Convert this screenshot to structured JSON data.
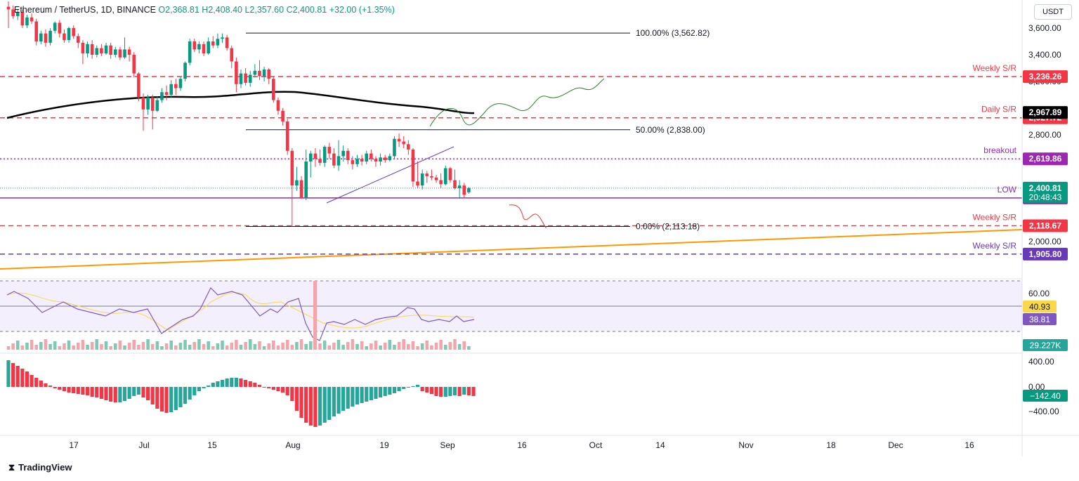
{
  "header": {
    "symbol": "Ethereum / TetherUS, 1D, BINANCE",
    "open": "O2,368.81",
    "high": "H2,408.40",
    "low": "L2,357.60",
    "close": "C2,400.81",
    "change": "+32.00 (+1.35%)"
  },
  "currency": "USDT",
  "brand": "TradingView",
  "chart_data": {
    "type": "candlestick",
    "y_axis_ticks": [
      3600,
      3400,
      3200,
      2800,
      2000
    ],
    "y_tick_labels": [
      "3,600.00",
      "3,400.00",
      "3,200.00",
      "2,800.00",
      "2,000.00"
    ],
    "x_tick_labels": [
      "17",
      "Jul",
      "15",
      "Aug",
      "19",
      "Sep",
      "16",
      "Oct",
      "14",
      "Nov",
      "18",
      "Dec",
      "16"
    ],
    "fibonacci": [
      {
        "label": "100.00% (3,562.82)",
        "value": 3562.82
      },
      {
        "label": "50.00% (2,838.00)",
        "value": 2838.0
      },
      {
        "label": "0.00% (2,113.18)",
        "value": 2113.18
      }
    ],
    "levels": [
      {
        "label": "Weekly S/R",
        "value": 3236.26,
        "tag": "3,236.26",
        "color": "#f23645"
      },
      {
        "label": "Daily S/R",
        "value": 2927.72,
        "tag": "2,927.72",
        "color": "#f23645"
      },
      {
        "label": "breakout",
        "value": 2619.86,
        "tag": "2,619.86",
        "color": "#9c27b0"
      },
      {
        "label": "LOW",
        "value": 2327.16,
        "tag": "2,327.16",
        "color": "#9c27b0"
      },
      {
        "label": "Weekly S/R",
        "value": 2118.67,
        "tag": "2,118.67",
        "color": "#f23645"
      },
      {
        "label": "Weekly S/R",
        "value": 1905.8,
        "tag": "1,905.80",
        "color": "#673ab7"
      }
    ],
    "ma200_tag": "2,967.89",
    "last_price": "2,400.81",
    "countdown": "20:48:43",
    "candles": [
      [
        3760,
        3740,
        3800,
        3600
      ],
      [
        3740,
        3690,
        3770,
        3670
      ],
      [
        3690,
        3720,
        3740,
        3660
      ],
      [
        3720,
        3620,
        3740,
        3600
      ],
      [
        3620,
        3680,
        3700,
        3600
      ],
      [
        3680,
        3650,
        3710,
        3630
      ],
      [
        3650,
        3500,
        3670,
        3470
      ],
      [
        3500,
        3560,
        3580,
        3480
      ],
      [
        3560,
        3490,
        3590,
        3460
      ],
      [
        3490,
        3580,
        3600,
        3470
      ],
      [
        3580,
        3640,
        3650,
        3560
      ],
      [
        3640,
        3560,
        3660,
        3530
      ],
      [
        3560,
        3510,
        3590,
        3490
      ],
      [
        3510,
        3600,
        3610,
        3490
      ],
      [
        3600,
        3540,
        3620,
        3520
      ],
      [
        3540,
        3490,
        3560,
        3450
      ],
      [
        3490,
        3410,
        3510,
        3330
      ],
      [
        3410,
        3480,
        3500,
        3380
      ],
      [
        3480,
        3400,
        3510,
        3370
      ],
      [
        3400,
        3450,
        3470,
        3380
      ],
      [
        3450,
        3410,
        3480,
        3390
      ],
      [
        3410,
        3470,
        3490,
        3400
      ],
      [
        3470,
        3400,
        3490,
        3370
      ],
      [
        3400,
        3440,
        3460,
        3380
      ],
      [
        3440,
        3380,
        3460,
        3360
      ],
      [
        3380,
        3440,
        3530,
        3370
      ],
      [
        3440,
        3400,
        3460,
        3350
      ],
      [
        3400,
        3260,
        3420,
        3230
      ],
      [
        3260,
        3080,
        3270,
        3050
      ],
      [
        3080,
        2990,
        3110,
        2830
      ],
      [
        2990,
        3080,
        3100,
        2950
      ],
      [
        3080,
        2980,
        3100,
        2840
      ],
      [
        2980,
        3060,
        3090,
        2970
      ],
      [
        3060,
        3120,
        3150,
        3040
      ],
      [
        3120,
        3100,
        3170,
        3060
      ],
      [
        3100,
        3180,
        3210,
        3080
      ],
      [
        3180,
        3150,
        3220,
        3100
      ],
      [
        3150,
        3220,
        3240,
        3130
      ],
      [
        3220,
        3340,
        3350,
        3200
      ],
      [
        3340,
        3500,
        3520,
        3320
      ],
      [
        3500,
        3440,
        3520,
        3420
      ],
      [
        3440,
        3480,
        3500,
        3410
      ],
      [
        3480,
        3410,
        3500,
        3390
      ],
      [
        3410,
        3500,
        3530,
        3400
      ],
      [
        3500,
        3470,
        3540,
        3450
      ],
      [
        3470,
        3520,
        3560,
        3450
      ],
      [
        3520,
        3530,
        3560,
        3490
      ],
      [
        3530,
        3450,
        3550,
        3430
      ],
      [
        3450,
        3350,
        3470,
        3300
      ],
      [
        3350,
        3180,
        3380,
        3120
      ],
      [
        3180,
        3260,
        3290,
        3150
      ],
      [
        3260,
        3190,
        3300,
        3170
      ],
      [
        3190,
        3250,
        3280,
        3160
      ],
      [
        3250,
        3280,
        3330,
        3230
      ],
      [
        3280,
        3240,
        3360,
        3210
      ],
      [
        3240,
        3290,
        3310,
        3200
      ],
      [
        3290,
        3220,
        3300,
        3180
      ],
      [
        3220,
        3060,
        3240,
        3040
      ],
      [
        3060,
        2980,
        3080,
        2950
      ],
      [
        2980,
        2900,
        3000,
        2870
      ],
      [
        2900,
        2680,
        2920,
        2650
      ],
      [
        2680,
        2420,
        2700,
        2113
      ],
      [
        2420,
        2460,
        2560,
        2380
      ],
      [
        2460,
        2330,
        2490,
        2320
      ],
      [
        2330,
        2600,
        2690,
        2310
      ],
      [
        2600,
        2660,
        2680,
        2480
      ],
      [
        2660,
        2620,
        2700,
        2560
      ],
      [
        2620,
        2590,
        2690,
        2570
      ],
      [
        2590,
        2710,
        2720,
        2560
      ],
      [
        2710,
        2660,
        2740,
        2620
      ],
      [
        2660,
        2570,
        2700,
        2550
      ],
      [
        2570,
        2640,
        2760,
        2530
      ],
      [
        2640,
        2680,
        2720,
        2600
      ],
      [
        2680,
        2610,
        2700,
        2580
      ],
      [
        2610,
        2580,
        2640,
        2540
      ],
      [
        2580,
        2620,
        2650,
        2560
      ],
      [
        2620,
        2600,
        2650,
        2570
      ],
      [
        2600,
        2660,
        2680,
        2580
      ],
      [
        2660,
        2620,
        2690,
        2600
      ],
      [
        2620,
        2600,
        2640,
        2560
      ],
      [
        2600,
        2630,
        2660,
        2570
      ],
      [
        2630,
        2610,
        2650,
        2590
      ],
      [
        2610,
        2640,
        2660,
        2600
      ],
      [
        2640,
        2770,
        2790,
        2620
      ],
      [
        2770,
        2750,
        2810,
        2710
      ],
      [
        2750,
        2730,
        2790,
        2700
      ],
      [
        2730,
        2690,
        2760,
        2650
      ],
      [
        2690,
        2450,
        2700,
        2410
      ],
      [
        2450,
        2420,
        2600,
        2400
      ],
      [
        2420,
        2510,
        2540,
        2390
      ],
      [
        2510,
        2490,
        2530,
        2440
      ],
      [
        2490,
        2480,
        2540,
        2460
      ],
      [
        2480,
        2460,
        2500,
        2440
      ],
      [
        2460,
        2430,
        2510,
        2400
      ],
      [
        2430,
        2550,
        2570,
        2420
      ],
      [
        2550,
        2460,
        2560,
        2440
      ],
      [
        2460,
        2400,
        2540,
        2390
      ],
      [
        2400,
        2420,
        2460,
        2320
      ],
      [
        2420,
        2350,
        2440,
        2330
      ],
      [
        2369,
        2401,
        2408,
        2358
      ]
    ]
  }
}
